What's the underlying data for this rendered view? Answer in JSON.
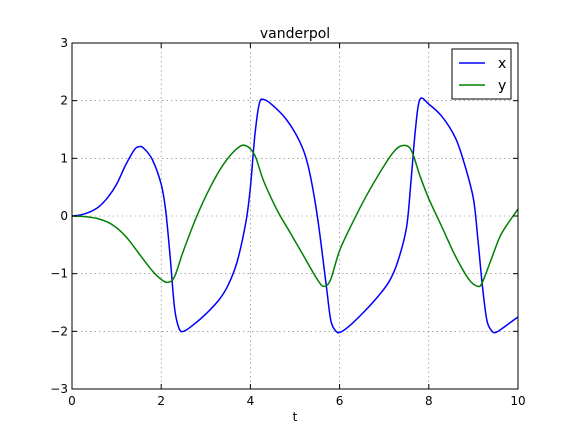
{
  "chart_data": {
    "type": "line",
    "title": "vanderpol",
    "xlabel": "t",
    "ylabel": "",
    "xlim": [
      0,
      10
    ],
    "ylim": [
      -3,
      3
    ],
    "xticks": [
      0,
      2,
      4,
      6,
      8,
      10
    ],
    "yticks": [
      -3,
      -2,
      -1,
      0,
      1,
      2,
      3
    ],
    "xtick_labels": [
      "0",
      "2",
      "4",
      "6",
      "8",
      "10"
    ],
    "ytick_labels": [
      "−3",
      "−2",
      "−1",
      "0",
      "1",
      "2",
      "3"
    ],
    "grid": true,
    "legend": "top-right",
    "series": [
      {
        "name": "x",
        "color": "#0000ff",
        "x": [
          0,
          0.2,
          0.4,
          0.6,
          0.8,
          1.0,
          1.2,
          1.4,
          1.5,
          1.6,
          1.8,
          2.0,
          2.1,
          2.2,
          2.3,
          2.4,
          2.5,
          2.7,
          3.0,
          3.3,
          3.5,
          3.7,
          3.9,
          4.0,
          4.1,
          4.2,
          4.3,
          4.5,
          4.8,
          5.1,
          5.3,
          5.5,
          5.7,
          5.8,
          5.9,
          6.0,
          6.2,
          6.5,
          6.8,
          7.1,
          7.3,
          7.5,
          7.6,
          7.7,
          7.8,
          8.0,
          8.3,
          8.6,
          8.8,
          9.0,
          9.1,
          9.2,
          9.3,
          9.4,
          9.5,
          9.7,
          10.0
        ],
        "y": [
          0,
          0.02,
          0.07,
          0.16,
          0.32,
          0.55,
          0.88,
          1.15,
          1.2,
          1.18,
          0.98,
          0.55,
          0.1,
          -0.7,
          -1.6,
          -1.95,
          -2.0,
          -1.9,
          -1.7,
          -1.45,
          -1.2,
          -0.8,
          -0.1,
          0.5,
          1.4,
          1.95,
          2.02,
          1.92,
          1.68,
          1.3,
          0.85,
          0.0,
          -1.2,
          -1.8,
          -1.98,
          -2.02,
          -1.92,
          -1.7,
          -1.45,
          -1.15,
          -0.8,
          -0.2,
          0.6,
          1.5,
          2.02,
          1.94,
          1.72,
          1.35,
          0.9,
          0.3,
          -0.4,
          -1.2,
          -1.8,
          -1.98,
          -2.02,
          -1.92,
          -1.75
        ]
      },
      {
        "name": "y",
        "color": "#008000",
        "x": [
          0,
          0.3,
          0.6,
          0.9,
          1.2,
          1.5,
          1.8,
          2.0,
          2.15,
          2.3,
          2.5,
          2.8,
          3.1,
          3.4,
          3.7,
          3.9,
          4.1,
          4.3,
          4.6,
          4.9,
          5.2,
          5.5,
          5.65,
          5.8,
          6.0,
          6.3,
          6.6,
          6.9,
          7.2,
          7.4,
          7.6,
          7.8,
          8.0,
          8.3,
          8.6,
          8.9,
          9.1,
          9.2,
          9.4,
          9.6,
          9.8,
          10.0
        ],
        "y": [
          0,
          -0.01,
          -0.05,
          -0.15,
          -0.35,
          -0.65,
          -0.95,
          -1.1,
          -1.15,
          -1.05,
          -0.6,
          0.0,
          0.5,
          0.9,
          1.17,
          1.22,
          1.05,
          0.6,
          0.1,
          -0.3,
          -0.7,
          -1.1,
          -1.22,
          -1.1,
          -0.6,
          -0.1,
          0.35,
          0.75,
          1.1,
          1.22,
          1.15,
          0.7,
          0.3,
          -0.2,
          -0.7,
          -1.1,
          -1.22,
          -1.15,
          -0.75,
          -0.35,
          -0.1,
          0.12
        ]
      }
    ]
  }
}
